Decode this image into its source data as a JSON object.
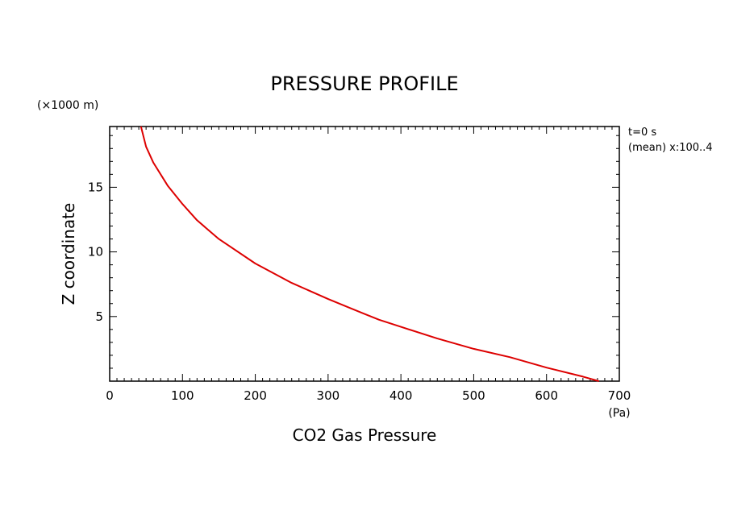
{
  "chart_data": {
    "type": "line",
    "title": "PRESSURE PROFILE",
    "xlabel": "CO2 Gas Pressure",
    "ylabel": "Z coordinate",
    "x_unit": "(Pa)",
    "y_unit": "(×1000 m)",
    "annotations": [
      "t=0 s",
      "(mean) x:100..4"
    ],
    "xlim": [
      0,
      700
    ],
    "ylim": [
      0,
      19.7
    ],
    "x_ticks": [
      0,
      100,
      200,
      300,
      400,
      500,
      600,
      700
    ],
    "x_tick_labels": [
      "0",
      "100",
      "200",
      "300",
      "400",
      "500",
      "600",
      "700"
    ],
    "y_ticks": [
      5,
      10,
      15
    ],
    "y_tick_labels": [
      "5",
      "10",
      "15"
    ],
    "grid": false,
    "line_color": "#dd0000",
    "series": [
      {
        "x": [
          672,
          650,
          600,
          550,
          500,
          450,
          400,
          370,
          350,
          300,
          250,
          200,
          150,
          120,
          100,
          80,
          60,
          50,
          43
        ],
        "y": [
          0,
          0.35,
          1.05,
          1.85,
          2.5,
          3.3,
          4.2,
          4.75,
          5.2,
          6.35,
          7.6,
          9.1,
          11.0,
          12.45,
          13.7,
          15.1,
          16.9,
          18.15,
          19.7
        ]
      }
    ]
  }
}
